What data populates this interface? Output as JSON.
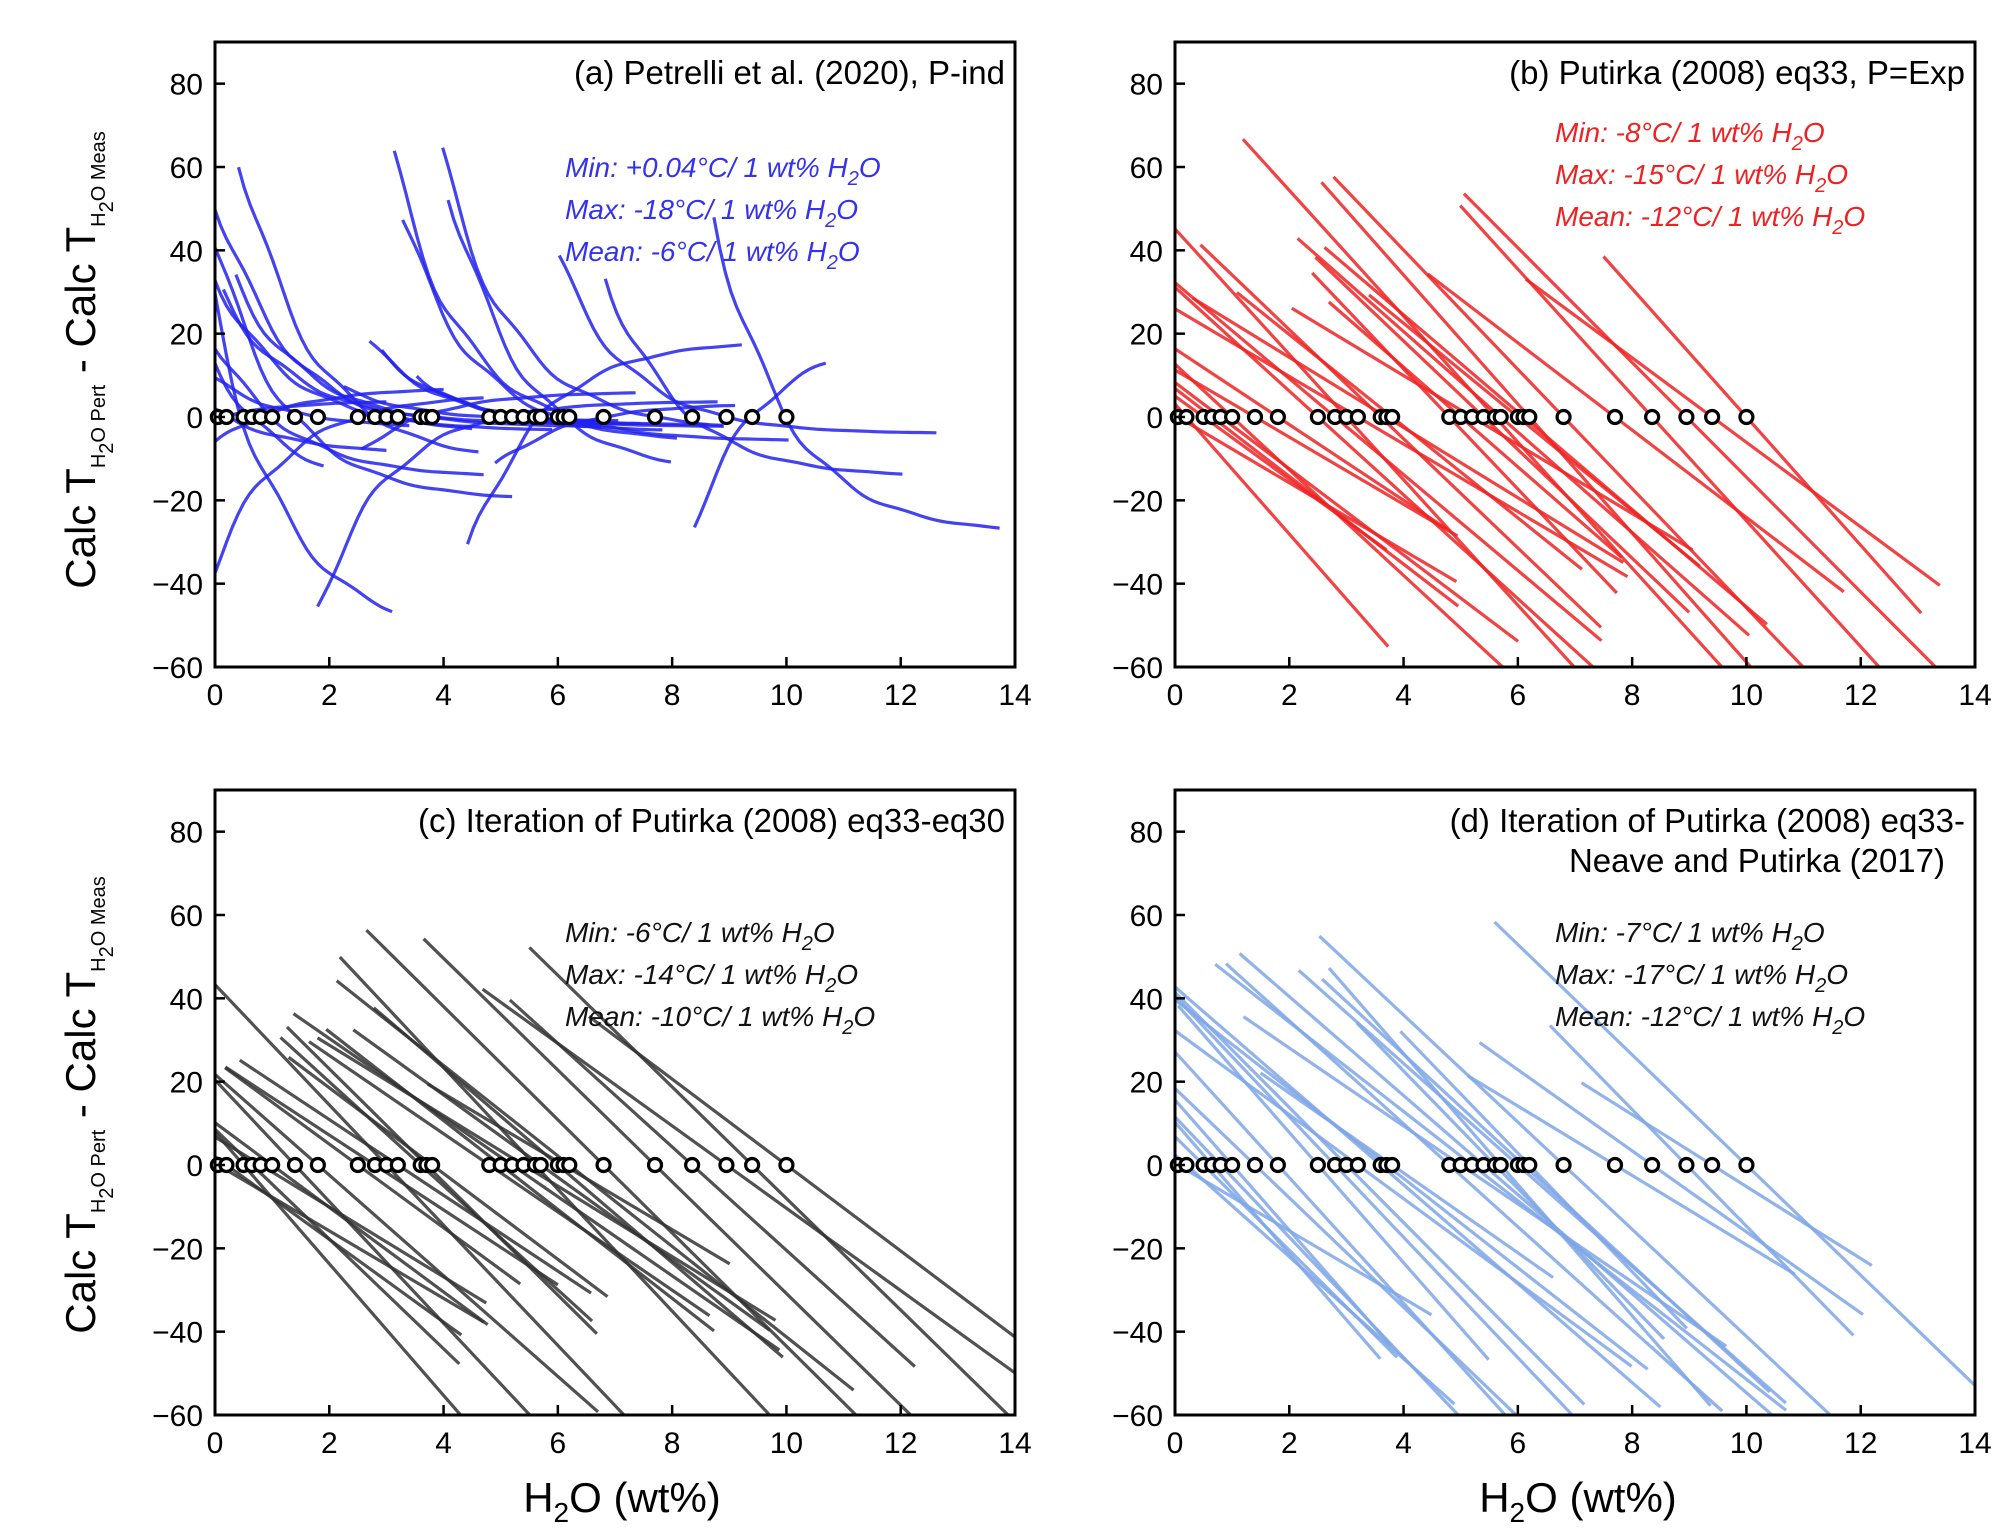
{
  "figure": {
    "ylabel": {
      "main": "Calc T",
      "sub1": "H",
      "sub2": "2",
      "sub3": "O Pert",
      "mid": " - Calc T",
      "sub4": "H",
      "sub5": "2",
      "sub6": "O Meas"
    },
    "xlabel": {
      "pre": "H",
      "sub": "2",
      "post": "O (wt%)"
    }
  },
  "chart_data": [
    {
      "type": "line",
      "id": "a",
      "title": "(a) Petrelli et al. (2020), P-ind",
      "title_line2": "",
      "color": "#2222ee",
      "annotations": [
        {
          "pre": "Min: +0.04°C/ 1 wt% H",
          "sub": "2",
          "post": "O"
        },
        {
          "pre": "Max:  -18°C/ 1 wt% H",
          "sub": "2",
          "post": "O"
        },
        {
          "pre": "Mean: -6°C/ 1 wt% H",
          "sub": "2",
          "post": "O"
        }
      ],
      "annotation_color": "#3333ee",
      "xlim": [
        0,
        14
      ],
      "ylim": [
        -60,
        90
      ],
      "xticks": [
        0,
        2,
        4,
        6,
        8,
        10,
        12,
        14
      ],
      "yticks": [
        -60,
        -40,
        -20,
        0,
        20,
        40,
        60,
        80
      ],
      "style": "curved"
    },
    {
      "type": "line",
      "id": "b",
      "title": "(b) Putirka (2008) eq33, P=Exp",
      "title_line2": "",
      "color": "#ee2222",
      "annotations": [
        {
          "pre": "Min: -8°C/ 1 wt% H",
          "sub": "2",
          "post": "O"
        },
        {
          "pre": "Max:  -15°C/ 1 wt% H",
          "sub": "2",
          "post": "O"
        },
        {
          "pre": "Mean: -12°C/ 1 wt% H",
          "sub": "2",
          "post": "O"
        }
      ],
      "annotation_color": "#ee2222",
      "xlim": [
        0,
        14
      ],
      "ylim": [
        -60,
        90
      ],
      "xticks": [
        0,
        2,
        4,
        6,
        8,
        10,
        12,
        14
      ],
      "yticks": [
        -60,
        -40,
        -20,
        0,
        20,
        40,
        60,
        80
      ],
      "style": "linear"
    },
    {
      "type": "line",
      "id": "c",
      "title": "(c) Iteration of Putirka (2008) eq33-eq30",
      "title_line2": "",
      "color": "#333333",
      "annotations": [
        {
          "pre": "Min: -6°C/ 1 wt% H",
          "sub": "2",
          "post": "O"
        },
        {
          "pre": "Max:  -14°C/ 1 wt% H",
          "sub": "2",
          "post": "O"
        },
        {
          "pre": "Mean: -10°C/ 1 wt% H",
          "sub": "2",
          "post": "O"
        }
      ],
      "annotation_color": "#111111",
      "xlim": [
        0,
        14
      ],
      "ylim": [
        -60,
        90
      ],
      "xticks": [
        0,
        2,
        4,
        6,
        8,
        10,
        12,
        14
      ],
      "yticks": [
        -60,
        -40,
        -20,
        0,
        20,
        40,
        60,
        80
      ],
      "style": "linear"
    },
    {
      "type": "line",
      "id": "d",
      "title": "(d) Iteration of Putirka (2008) eq33-",
      "title_line2": "Neave and Putirka (2017)",
      "color": "#7ea6e6",
      "annotations": [
        {
          "pre": "Min: -7°C/ 1 wt% H",
          "sub": "2",
          "post": "O"
        },
        {
          "pre": "Max:  -17°C/ 1 wt% H",
          "sub": "2",
          "post": "O"
        },
        {
          "pre": "Mean: -12°C/ 1 wt% H",
          "sub": "2",
          "post": "O"
        }
      ],
      "annotation_color": "#111111",
      "xlim": [
        0,
        14
      ],
      "ylim": [
        -60,
        90
      ],
      "xticks": [
        0,
        2,
        4,
        6,
        8,
        10,
        12,
        14
      ],
      "yticks": [
        -60,
        -40,
        -20,
        0,
        20,
        40,
        60,
        80
      ],
      "style": "linear"
    }
  ],
  "measured_h2o": [
    0.05,
    0.2,
    0.5,
    0.65,
    0.8,
    1.0,
    1.4,
    1.8,
    2.5,
    2.8,
    3.0,
    3.2,
    3.6,
    3.7,
    3.8,
    4.8,
    5.0,
    5.2,
    5.4,
    5.6,
    5.7,
    6.0,
    6.1,
    6.2,
    6.8,
    7.7,
    8.35,
    8.95,
    9.4,
    10.0
  ]
}
